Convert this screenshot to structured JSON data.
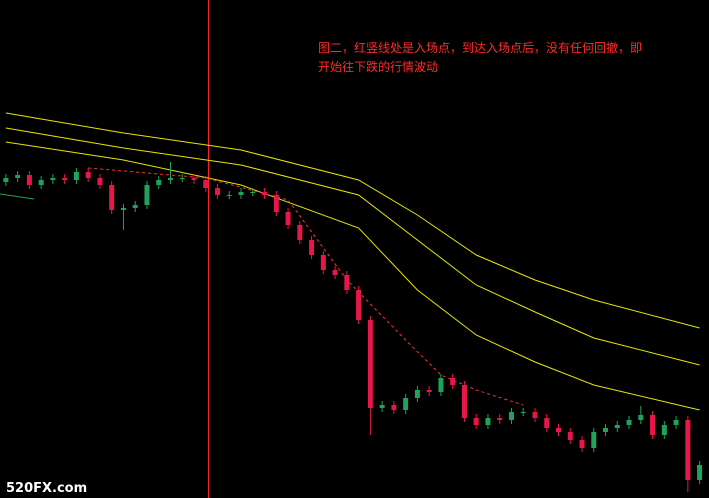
{
  "chart_data": {
    "type": "candlestick",
    "annotation": [
      "图二，红竖线处是入场点，到达入场点后，没有任何回撤，即",
      "开始往下跌的行情波动"
    ],
    "watermark": "520FX.com",
    "xlim": [
      -0.5,
      59.8
    ],
    "ylim": [
      0,
      498
    ],
    "up_color": "#1fa35a",
    "down_color": "#e8174a",
    "open": [
      316,
      320,
      323,
      313,
      318,
      320,
      318,
      326,
      320,
      313,
      288,
      290,
      293,
      313,
      318,
      320,
      320,
      318,
      310,
      303,
      303,
      306,
      306,
      303,
      286,
      273,
      258,
      243,
      228,
      223,
      208,
      178,
      90,
      93,
      88,
      100,
      108,
      106,
      120,
      113,
      80,
      73,
      80,
      78,
      86,
      86,
      80,
      70,
      66,
      58,
      50,
      66,
      70,
      73,
      78,
      83,
      63,
      73,
      78,
      18
    ],
    "high": [
      324,
      327,
      327,
      322,
      324,
      324,
      330,
      330,
      324,
      317,
      294,
      297,
      317,
      322,
      336,
      324,
      324,
      322,
      314,
      307,
      310,
      310,
      310,
      307,
      290,
      277,
      262,
      247,
      232,
      227,
      212,
      182,
      97,
      97,
      104,
      112,
      112,
      124,
      124,
      117,
      84,
      84,
      84,
      90,
      90,
      90,
      84,
      74,
      70,
      62,
      70,
      74,
      77,
      82,
      92,
      87,
      77,
      82,
      82,
      37
    ],
    "low": [
      312,
      316,
      309,
      309,
      314,
      314,
      314,
      316,
      309,
      284,
      268,
      286,
      289,
      309,
      314,
      316,
      314,
      306,
      299,
      299,
      299,
      302,
      299,
      282,
      269,
      254,
      239,
      224,
      219,
      204,
      174,
      63,
      86,
      84,
      84,
      96,
      102,
      102,
      109,
      76,
      69,
      69,
      74,
      74,
      82,
      76,
      66,
      62,
      54,
      46,
      46,
      62,
      66,
      69,
      74,
      59,
      59,
      69,
      6,
      14
    ],
    "close": [
      320,
      323,
      313,
      318,
      320,
      318,
      326,
      320,
      313,
      288,
      290,
      293,
      313,
      318,
      320,
      320,
      318,
      310,
      303,
      303,
      306,
      306,
      303,
      286,
      273,
      258,
      243,
      228,
      223,
      208,
      178,
      90,
      93,
      88,
      100,
      108,
      106,
      120,
      113,
      80,
      73,
      80,
      78,
      86,
      86,
      80,
      70,
      66,
      58,
      50,
      66,
      70,
      73,
      78,
      83,
      63,
      73,
      78,
      18,
      33
    ],
    "series": [
      {
        "color": "#e6e600",
        "x": [
          0,
          10,
          20,
          30,
          35,
          40,
          45,
          50,
          59
        ],
        "values": [
          385,
          365,
          348,
          318,
          283,
          243,
          218,
          198,
          170
        ]
      },
      {
        "color": "#e6e600",
        "x": [
          0,
          10,
          20,
          30,
          35,
          40,
          45,
          50,
          59
        ],
        "values": [
          370,
          350,
          333,
          303,
          258,
          213,
          186,
          160,
          133
        ]
      },
      {
        "color": "#e6e600",
        "x": [
          0,
          10,
          20,
          30,
          35,
          40,
          45,
          50,
          59
        ],
        "values": [
          356,
          338,
          313,
          270,
          208,
          163,
          136,
          113,
          88
        ]
      },
      {
        "color": "#ff3030",
        "dashed": true,
        "x": [
          7,
          17,
          24,
          29,
          34,
          37,
          40,
          44
        ],
        "values": [
          330,
          320,
          298,
          218,
          158,
          123,
          108,
          93
        ]
      }
    ]
  }
}
